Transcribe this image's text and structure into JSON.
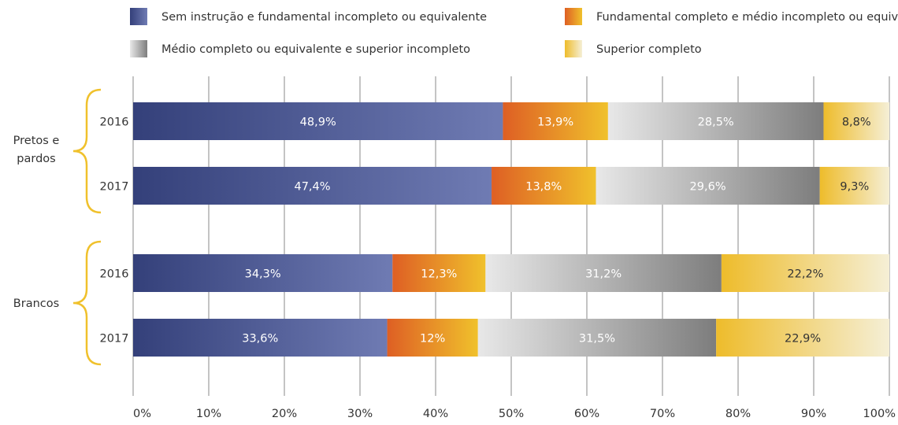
{
  "chart_data": {
    "type": "bar",
    "orientation": "horizontal",
    "stacked": true,
    "grid": true,
    "legend_position": "top",
    "xlim": [
      0,
      100
    ],
    "xticks": [
      "0%",
      "10%",
      "20%",
      "30%",
      "40%",
      "50%",
      "60%",
      "70%",
      "80%",
      "90%",
      "100%"
    ],
    "legend": [
      {
        "name": "Sem instrução e fundamental incompleto ou equivalente",
        "color_start": "#34407a",
        "color_end": "#6f7bb3"
      },
      {
        "name": "Fundamental completo e médio incompleto ou equivalente",
        "color_start": "#de5f24",
        "color_end": "#f0c12c"
      },
      {
        "name": "Médio completo ou equivalente e superior incompleto",
        "color_start": "#e8e8e8",
        "color_end": "#7d7d7d"
      },
      {
        "name": "Superior completo",
        "color_start": "#eebc2b",
        "color_end": "#f5efd6"
      }
    ],
    "groups": [
      {
        "label": "Pretos e pardos",
        "rows": [
          {
            "year": "2016",
            "values": [
              48.9,
              13.9,
              28.5,
              8.8
            ],
            "labels": [
              "48,9%",
              "13,9%",
              "28,5%",
              "8,8%"
            ]
          },
          {
            "year": "2017",
            "values": [
              47.4,
              13.8,
              29.6,
              9.3
            ],
            "labels": [
              "47,4%",
              "13,8%",
              "29,6%",
              "9,3%"
            ]
          }
        ]
      },
      {
        "label": "Brancos",
        "rows": [
          {
            "year": "2016",
            "values": [
              34.3,
              12.3,
              31.2,
              22.2
            ],
            "labels": [
              "34,3%",
              "12,3%",
              "31,2%",
              "22,2%"
            ]
          },
          {
            "year": "2017",
            "values": [
              33.6,
              12.0,
              31.5,
              22.9
            ],
            "labels": [
              "33,6%",
              "12%",
              "31,5%",
              "22,9%"
            ]
          }
        ]
      }
    ],
    "colors": {
      "grid": "#888888",
      "bracket": "#f0c12c",
      "text": "#333333",
      "bar_label_light": "#ffffff",
      "bar_label_dark": "#333333"
    }
  }
}
